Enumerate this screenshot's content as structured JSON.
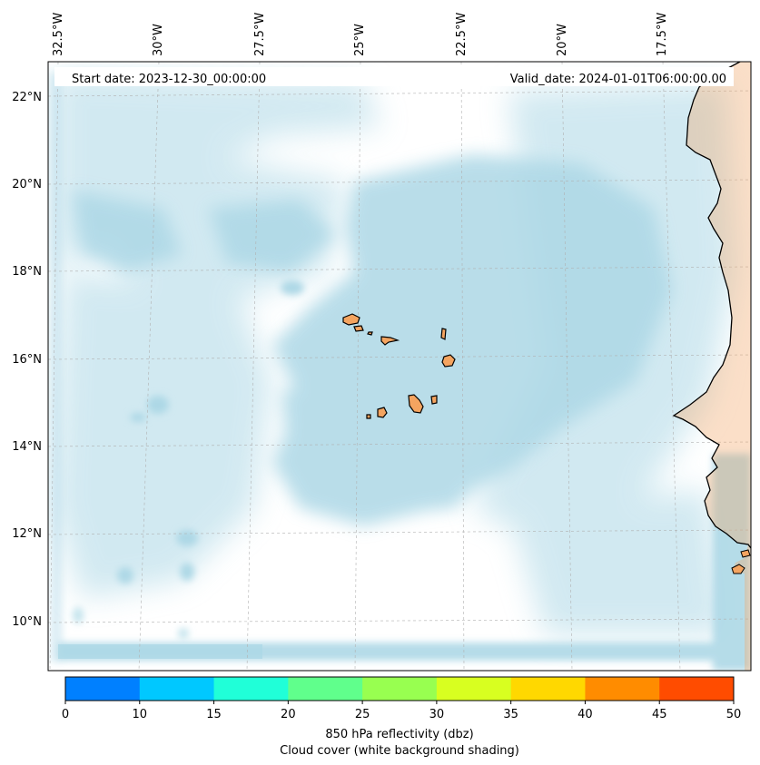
{
  "header": {
    "start_date": "Start date: 2023-12-30_00:00:00",
    "valid_date": "Valid_date: 2024-01-01T06:00:00.00"
  },
  "lon_labels": [
    "32.5°W",
    "30°W",
    "27.5°W",
    "25°W",
    "22.5°W",
    "20°W",
    "17.5°W"
  ],
  "lat_labels": [
    "22°N",
    "20°N",
    "18°N",
    "16°N",
    "14°N",
    "12°N",
    "10°N"
  ],
  "colorbar": {
    "ticks": [
      "0",
      "10",
      "15",
      "20",
      "25",
      "30",
      "35",
      "40",
      "45",
      "50"
    ],
    "colors": [
      "#0080ff",
      "#00c8ff",
      "#20ffd8",
      "#60ff8c",
      "#98ff50",
      "#d8ff20",
      "#ffd800",
      "#ff8c00",
      "#ff4c00"
    ],
    "label1": "850 hPa reflectivity (dbz)",
    "label2": "Cloud cover (white background shading)"
  },
  "colors": {
    "cloud": "#add8e6",
    "land": "#f4a460",
    "ocean": "#ffffff",
    "grid": "#b0b0b0"
  }
}
